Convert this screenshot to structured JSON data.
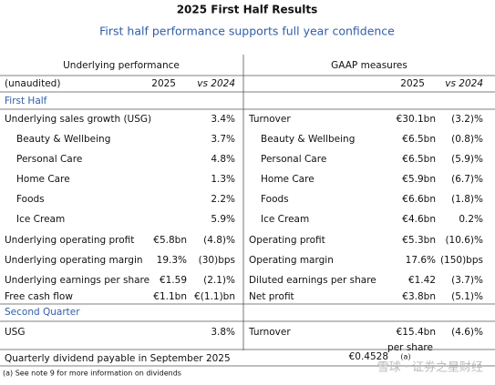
{
  "header": {
    "title": "2025 First Half Results",
    "subtitle": "First half performance supports full year confidence"
  },
  "table": {
    "left_heading": "Underlying performance",
    "right_heading": "GAAP measures",
    "columns_left": [
      "(unaudited)",
      "2025",
      "vs 2024"
    ],
    "columns_right": [
      "2025",
      "vs 2024"
    ],
    "sections": [
      {
        "title": "First Half",
        "rows": [
          {
            "left": {
              "label": "Underlying sales growth (USG)",
              "vs": "3.4%"
            },
            "right": {
              "label": "Turnover",
              "value": "€30.1bn",
              "vs": "(3.2)%"
            }
          },
          {
            "left": {
              "label": "Beauty & Wellbeing",
              "sub": true,
              "vs": "3.7%"
            },
            "right": {
              "label": "Beauty & Wellbeing",
              "sub": true,
              "value": "€6.5bn",
              "vs": "(0.8)%"
            }
          },
          {
            "left": {
              "label": "Personal Care",
              "sub": true,
              "vs": "4.8%"
            },
            "right": {
              "label": "Personal Care",
              "sub": true,
              "value": "€6.5bn",
              "vs": "(5.9)%"
            }
          },
          {
            "left": {
              "label": "Home Care",
              "sub": true,
              "vs": "1.3%"
            },
            "right": {
              "label": "Home Care",
              "sub": true,
              "value": "€5.9bn",
              "vs": "(6.7)%"
            }
          },
          {
            "left": {
              "label": "Foods",
              "sub": true,
              "vs": "2.2%"
            },
            "right": {
              "label": "Foods",
              "sub": true,
              "value": "€6.6bn",
              "vs": "(1.8)%"
            }
          },
          {
            "left": {
              "label": "Ice Cream",
              "sub": true,
              "vs": "5.9%"
            },
            "right": {
              "label": "Ice Cream",
              "sub": true,
              "value": "€4.6bn",
              "vs": "0.2%"
            }
          },
          {
            "left": {
              "label": "Underlying operating profit",
              "value": "€5.8bn",
              "vs": "(4.8)%"
            },
            "right": {
              "label": "Operating profit",
              "value": "€5.3bn",
              "vs": "(10.6)%"
            }
          },
          {
            "left": {
              "label": "Underlying operating margin",
              "value": "19.3%",
              "vs": "(30)bps"
            },
            "right": {
              "label": "Operating margin",
              "value": "17.6%",
              "vs": "(150)bps"
            }
          },
          {
            "left": {
              "label": "Underlying earnings per share",
              "value": "€1.59",
              "vs": "(2.1)%"
            },
            "right": {
              "label": "Diluted earnings per share",
              "value": "€1.42",
              "vs": "(3.7)%"
            }
          },
          {
            "left": {
              "label": "Free cash flow",
              "value": "€1.1bn",
              "vs": "€(1.1)bn"
            },
            "right": {
              "label": "Net profit",
              "value": "€3.8bn",
              "vs": "(5.1)%"
            }
          }
        ]
      },
      {
        "title": "Second Quarter",
        "rows": [
          {
            "left": {
              "label": "USG",
              "vs": "3.8%"
            },
            "right": {
              "label": "Turnover",
              "value": "€15.4bn",
              "vs": "(4.6)%"
            }
          }
        ]
      }
    ],
    "dividend": {
      "label": "Quarterly dividend payable in September 2025",
      "value": "€0.4528",
      "unit": "per share",
      "note": "(a)"
    }
  },
  "footnote": "(a)  See note 9 for more information on dividends",
  "watermark": "雪球 · 证券之星财经"
}
